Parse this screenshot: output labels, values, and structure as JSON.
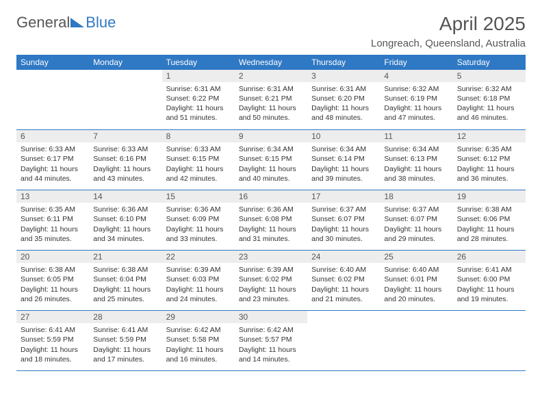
{
  "brand": {
    "part1": "General",
    "part2": "Blue"
  },
  "title": "April 2025",
  "subtitle": "Longreach, Queensland, Australia",
  "colors": {
    "header_bg": "#2f78c4",
    "header_text": "#ffffff",
    "daynum_bg": "#ededed",
    "text": "#333333",
    "rule": "#2f78c4",
    "page_bg": "#ffffff"
  },
  "columns": [
    "Sunday",
    "Monday",
    "Tuesday",
    "Wednesday",
    "Thursday",
    "Friday",
    "Saturday"
  ],
  "weeks": [
    [
      null,
      null,
      {
        "n": "1",
        "sr": "6:31 AM",
        "ss": "6:22 PM",
        "dl": "11 hours and 51 minutes."
      },
      {
        "n": "2",
        "sr": "6:31 AM",
        "ss": "6:21 PM",
        "dl": "11 hours and 50 minutes."
      },
      {
        "n": "3",
        "sr": "6:31 AM",
        "ss": "6:20 PM",
        "dl": "11 hours and 48 minutes."
      },
      {
        "n": "4",
        "sr": "6:32 AM",
        "ss": "6:19 PM",
        "dl": "11 hours and 47 minutes."
      },
      {
        "n": "5",
        "sr": "6:32 AM",
        "ss": "6:18 PM",
        "dl": "11 hours and 46 minutes."
      }
    ],
    [
      {
        "n": "6",
        "sr": "6:33 AM",
        "ss": "6:17 PM",
        "dl": "11 hours and 44 minutes."
      },
      {
        "n": "7",
        "sr": "6:33 AM",
        "ss": "6:16 PM",
        "dl": "11 hours and 43 minutes."
      },
      {
        "n": "8",
        "sr": "6:33 AM",
        "ss": "6:15 PM",
        "dl": "11 hours and 42 minutes."
      },
      {
        "n": "9",
        "sr": "6:34 AM",
        "ss": "6:15 PM",
        "dl": "11 hours and 40 minutes."
      },
      {
        "n": "10",
        "sr": "6:34 AM",
        "ss": "6:14 PM",
        "dl": "11 hours and 39 minutes."
      },
      {
        "n": "11",
        "sr": "6:34 AM",
        "ss": "6:13 PM",
        "dl": "11 hours and 38 minutes."
      },
      {
        "n": "12",
        "sr": "6:35 AM",
        "ss": "6:12 PM",
        "dl": "11 hours and 36 minutes."
      }
    ],
    [
      {
        "n": "13",
        "sr": "6:35 AM",
        "ss": "6:11 PM",
        "dl": "11 hours and 35 minutes."
      },
      {
        "n": "14",
        "sr": "6:36 AM",
        "ss": "6:10 PM",
        "dl": "11 hours and 34 minutes."
      },
      {
        "n": "15",
        "sr": "6:36 AM",
        "ss": "6:09 PM",
        "dl": "11 hours and 33 minutes."
      },
      {
        "n": "16",
        "sr": "6:36 AM",
        "ss": "6:08 PM",
        "dl": "11 hours and 31 minutes."
      },
      {
        "n": "17",
        "sr": "6:37 AM",
        "ss": "6:07 PM",
        "dl": "11 hours and 30 minutes."
      },
      {
        "n": "18",
        "sr": "6:37 AM",
        "ss": "6:07 PM",
        "dl": "11 hours and 29 minutes."
      },
      {
        "n": "19",
        "sr": "6:38 AM",
        "ss": "6:06 PM",
        "dl": "11 hours and 28 minutes."
      }
    ],
    [
      {
        "n": "20",
        "sr": "6:38 AM",
        "ss": "6:05 PM",
        "dl": "11 hours and 26 minutes."
      },
      {
        "n": "21",
        "sr": "6:38 AM",
        "ss": "6:04 PM",
        "dl": "11 hours and 25 minutes."
      },
      {
        "n": "22",
        "sr": "6:39 AM",
        "ss": "6:03 PM",
        "dl": "11 hours and 24 minutes."
      },
      {
        "n": "23",
        "sr": "6:39 AM",
        "ss": "6:02 PM",
        "dl": "11 hours and 23 minutes."
      },
      {
        "n": "24",
        "sr": "6:40 AM",
        "ss": "6:02 PM",
        "dl": "11 hours and 21 minutes."
      },
      {
        "n": "25",
        "sr": "6:40 AM",
        "ss": "6:01 PM",
        "dl": "11 hours and 20 minutes."
      },
      {
        "n": "26",
        "sr": "6:41 AM",
        "ss": "6:00 PM",
        "dl": "11 hours and 19 minutes."
      }
    ],
    [
      {
        "n": "27",
        "sr": "6:41 AM",
        "ss": "5:59 PM",
        "dl": "11 hours and 18 minutes."
      },
      {
        "n": "28",
        "sr": "6:41 AM",
        "ss": "5:59 PM",
        "dl": "11 hours and 17 minutes."
      },
      {
        "n": "29",
        "sr": "6:42 AM",
        "ss": "5:58 PM",
        "dl": "11 hours and 16 minutes."
      },
      {
        "n": "30",
        "sr": "6:42 AM",
        "ss": "5:57 PM",
        "dl": "11 hours and 14 minutes."
      },
      null,
      null,
      null
    ]
  ],
  "labels": {
    "sunrise": "Sunrise:",
    "sunset": "Sunset:",
    "daylight": "Daylight:"
  }
}
